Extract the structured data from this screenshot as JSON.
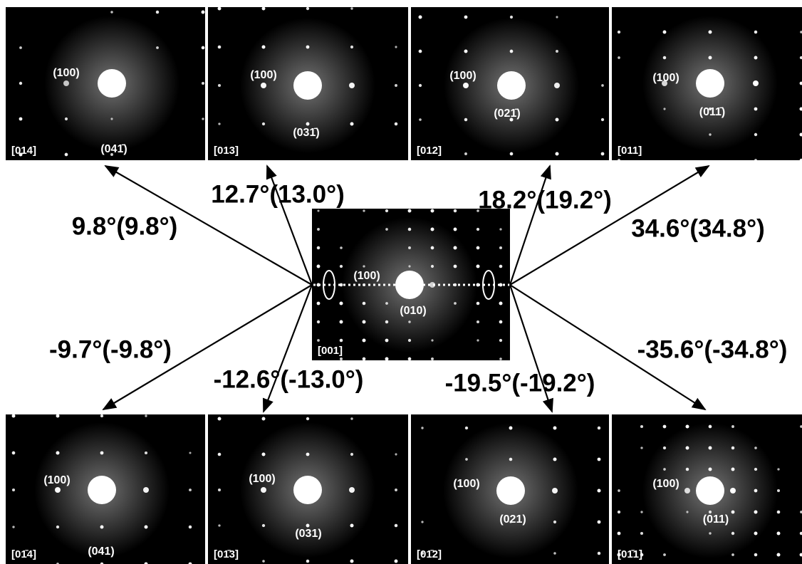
{
  "top_panels": [
    {
      "zone": "[014]",
      "labels": [
        "(100)",
        "(041̄)"
      ]
    },
    {
      "zone": "[013]",
      "labels": [
        "(100)",
        "(031̄)"
      ]
    },
    {
      "zone": "[012]",
      "labels": [
        "(100)",
        "(021̄)"
      ]
    },
    {
      "zone": "[011]",
      "labels": [
        "(100)",
        "(011̄)"
      ]
    }
  ],
  "center_panel": {
    "zone": "[001]",
    "labels": [
      "(100)",
      "(010)"
    ]
  },
  "bottom_panels": [
    {
      "zone": "[01̄4]",
      "labels": [
        "(100)",
        "(041)"
      ]
    },
    {
      "zone": "[01̄3]",
      "labels": [
        "(100)",
        "(031)"
      ]
    },
    {
      "zone": "[01̄2]",
      "labels": [
        "(100)",
        "(021)"
      ]
    },
    {
      "zone": "[01̄1]",
      "labels": [
        "(100)",
        "(011)"
      ]
    }
  ],
  "angles": [
    "9.8°(9.8°)",
    "12.7°(13.0°)",
    "18.2°(19.2°)",
    "34.6°(34.8°)",
    "-9.7°(-9.8°)",
    "-12.6°(-13.0°)",
    "-19.5°(-19.2°)",
    "-35.6°(-34.8°)"
  ]
}
